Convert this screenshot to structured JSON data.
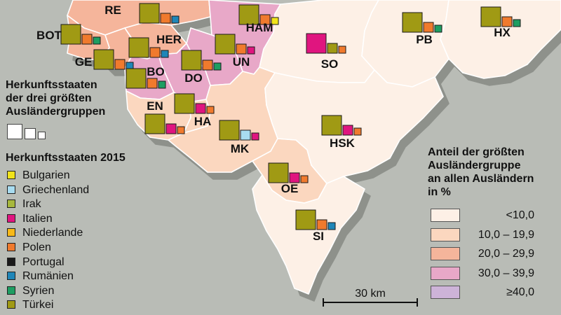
{
  "colors": {
    "background": "#b9bcb6",
    "classes": [
      "#fdf0e6",
      "#fbd7bf",
      "#f5b59b",
      "#e8a8c8",
      "#cdb3d8"
    ],
    "countries": {
      "Bulgarien": "#f1e31a",
      "Griechenland": "#a8dcf0",
      "Irak": "#a7b83c",
      "Italien": "#e0157f",
      "Niederlande": "#f7b918",
      "Polen": "#f07a2d",
      "Portugal": "#1a1a1a",
      "Rumänien": "#1f86b8",
      "Syrien": "#1e9e62",
      "Türkei": "#a09a14"
    }
  },
  "districts": [
    {
      "code": "RE",
      "class": 3
    },
    {
      "code": "BOT",
      "class": 3
    },
    {
      "code": "GE",
      "class": 3
    },
    {
      "code": "HER",
      "class": 3
    },
    {
      "code": "BO",
      "class": 4
    },
    {
      "code": "HAM",
      "class": 4
    },
    {
      "code": "UN",
      "class": 4
    },
    {
      "code": "DO",
      "class": 4
    },
    {
      "code": "EN",
      "class": 2
    },
    {
      "code": "HA",
      "class": 2
    },
    {
      "code": "MK",
      "class": 2
    },
    {
      "code": "OE",
      "class": 2
    },
    {
      "code": "SO",
      "class": 1
    },
    {
      "code": "PB",
      "class": 1
    },
    {
      "code": "HX",
      "class": 1
    },
    {
      "code": "HSK",
      "class": 1
    },
    {
      "code": "SI",
      "class": 1
    }
  ],
  "symbol_groups": [
    {
      "code": "RE",
      "countries": [
        "Türkei",
        "Polen",
        "Rumänien"
      ]
    },
    {
      "code": "HAM",
      "countries": [
        "Türkei",
        "Polen",
        "Bulgarien"
      ]
    },
    {
      "code": "BOT",
      "countries": [
        "Türkei",
        "Polen",
        "Syrien"
      ]
    },
    {
      "code": "HER",
      "countries": [
        "Türkei",
        "Polen",
        "Rumänien"
      ]
    },
    {
      "code": "UN",
      "countries": [
        "Türkei",
        "Polen",
        "Italien"
      ]
    },
    {
      "code": "GE",
      "countries": [
        "Türkei",
        "Polen",
        "Rumänien"
      ]
    },
    {
      "code": "DO",
      "countries": [
        "Türkei",
        "Polen",
        "Syrien"
      ]
    },
    {
      "code": "BO",
      "countries": [
        "Türkei",
        "Polen",
        "Syrien"
      ]
    },
    {
      "code": "EN",
      "countries": [
        "Türkei",
        "Italien",
        "Polen"
      ]
    },
    {
      "code": "HA",
      "countries": [
        "Türkei",
        "Italien",
        "Polen"
      ]
    },
    {
      "code": "MK",
      "countries": [
        "Türkei",
        "Griechenland",
        "Italien"
      ]
    },
    {
      "code": "SO",
      "countries": [
        "Italien",
        "Türkei",
        "Polen"
      ]
    },
    {
      "code": "PB",
      "countries": [
        "Türkei",
        "Polen",
        "Syrien"
      ]
    },
    {
      "code": "HX",
      "countries": [
        "Türkei",
        "Polen",
        "Syrien"
      ]
    },
    {
      "code": "HSK",
      "countries": [
        "Türkei",
        "Italien",
        "Polen"
      ]
    },
    {
      "code": "OE",
      "countries": [
        "Türkei",
        "Italien",
        "Polen"
      ]
    },
    {
      "code": "SI",
      "countries": [
        "Türkei",
        "Polen",
        "Rumänien"
      ]
    }
  ],
  "legend": {
    "size_title": [
      "Herkunftsstaaten",
      "der drei größten",
      "Ausländergruppen"
    ],
    "countries_title": "Herkunftsstaaten 2015",
    "countries": [
      "Bulgarien",
      "Griechenland",
      "Irak",
      "Italien",
      "Niederlande",
      "Polen",
      "Portugal",
      "Rumänien",
      "Syrien",
      "Türkei"
    ],
    "classes_title": [
      "Anteil der größten",
      "Ausländergruppe",
      "an allen Ausländern",
      "in %"
    ],
    "classes": [
      "<10,0",
      "10,0 – 19,9",
      "20,0 – 29,9",
      "30,0 – 39,9",
      "≥40,0"
    ]
  },
  "scale_bar": {
    "label": "30 km"
  }
}
